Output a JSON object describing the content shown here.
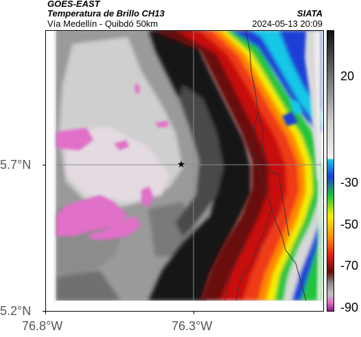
{
  "header": {
    "satellite": "GOES-EAST",
    "product": "Temperatura de Brillo CH13",
    "region": "Vía Medellín - Quibdó 50km",
    "brand": "SIATA",
    "timestamp": "2024-05-13 20:09"
  },
  "map": {
    "lat_labels": [
      "5.7°N",
      "5.2°N"
    ],
    "lon_labels": [
      "76.8°W",
      "76.3°W"
    ],
    "marker": "star-marker"
  },
  "colorbar": {
    "labels": [
      "20",
      "-30",
      "-50",
      "-70",
      "-90"
    ],
    "colors": {
      "warm": "#ededed",
      "gray": "#888888",
      "dark": "#111111",
      "pink": "#e070c8",
      "red": "#e0221a",
      "orange": "#ff8a00",
      "yellow": "#f4f000",
      "green": "#22c43a",
      "blue": "#1a3fd6",
      "cyan": "#14c8e8"
    }
  }
}
